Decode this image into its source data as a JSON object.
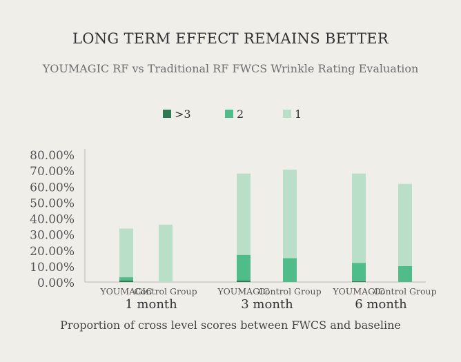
{
  "chart_data": {
    "type": "bar",
    "stacked": true,
    "title": "LONG TERM EFFECT REMAINS BETTER",
    "subtitle": "YOUMAGIC RF vs Traditional RF FWCS Wrinkle Rating Evaluation",
    "xlabel": "Proportion of cross level scores between FWCS and baseline",
    "ylabel": "",
    "ylim": [
      0,
      80
    ],
    "yticks": [
      "0.00%",
      "10.00%",
      "20.00%",
      "30.00%",
      "40.00%",
      "50.00%",
      "60.00%",
      "70.00%",
      "80.00%"
    ],
    "groups": [
      "1 month",
      "3 month",
      "6 month"
    ],
    "categories": [
      "YOUMAGIC",
      "Control Group",
      "YOUMAGIC",
      "Control Group",
      "YOUMAGIC",
      "Control Group"
    ],
    "category_group": [
      0,
      0,
      1,
      1,
      2,
      2
    ],
    "series": [
      {
        "name": ">3",
        "color": "#2e7a52",
        "values": [
          1,
          0,
          1,
          0,
          0.5,
          0
        ]
      },
      {
        "name": "2",
        "color": "#4fbd8a",
        "values": [
          2,
          0,
          16,
          15,
          11.5,
          10
        ]
      },
      {
        "name": "1",
        "color": "#b9dfc8",
        "values": [
          30.5,
          36,
          51,
          55.5,
          56,
          51.5
        ]
      }
    ],
    "legend_position": "top-center",
    "grid": false
  }
}
